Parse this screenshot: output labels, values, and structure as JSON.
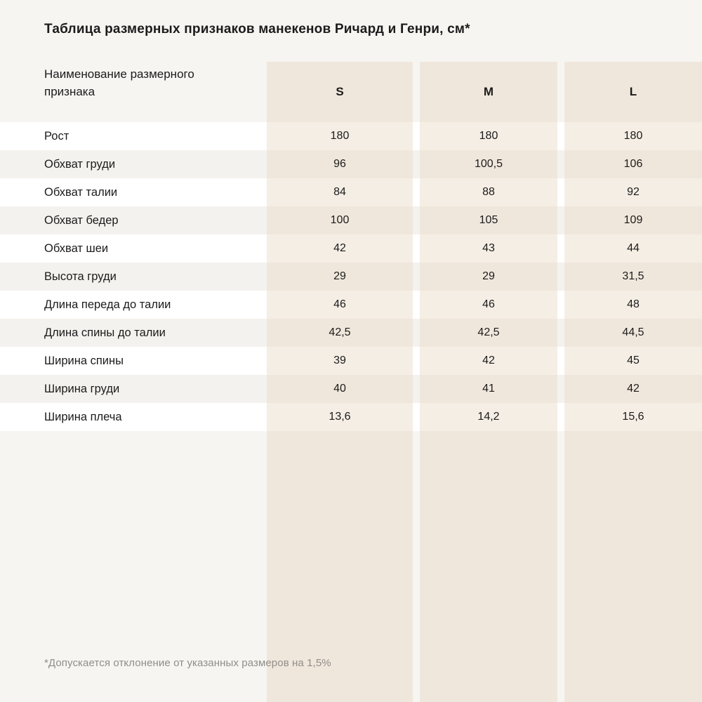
{
  "chart_data": {
    "type": "table",
    "title": "Таблица размерных признаков манекенов Ричард и Генри, см*",
    "header": {
      "label": "Наименование размерного признака",
      "sizes": [
        "S",
        "M",
        "L"
      ]
    },
    "rows": [
      {
        "label": "Рост",
        "values": [
          "180",
          "180",
          "180"
        ]
      },
      {
        "label": "Обхват груди",
        "values": [
          "96",
          "100,5",
          "106"
        ]
      },
      {
        "label": "Обхват талии",
        "values": [
          "84",
          "88",
          "92"
        ]
      },
      {
        "label": "Обхват бедер",
        "values": [
          "100",
          "105",
          "109"
        ]
      },
      {
        "label": "Обхват шеи",
        "values": [
          "42",
          "43",
          "44"
        ]
      },
      {
        "label": "Высота груди",
        "values": [
          "29",
          "29",
          "31,5"
        ]
      },
      {
        "label": "Длина переда до талии",
        "values": [
          "46",
          "46",
          "48"
        ]
      },
      {
        "label": "Длина спины до талии",
        "values": [
          "42,5",
          "42,5",
          "44,5"
        ]
      },
      {
        "label": "Ширина спины",
        "values": [
          "39",
          "42",
          "45"
        ]
      },
      {
        "label": "Ширина груди",
        "values": [
          "40",
          "41",
          "42"
        ]
      },
      {
        "label": "Ширина плеча",
        "values": [
          "13,6",
          "14,2",
          "15,6"
        ]
      }
    ],
    "footnote": "*Допускается отклонение от указанных размеров на 1,5%"
  },
  "colors": {
    "page_bg": "#f7f5f2",
    "band": "#f0e7dc",
    "band_light": "#f5eee5",
    "row_white": "#ffffff",
    "row_stripe": "#f4f2ee",
    "footnote": "#908d89",
    "text": "#1b1b1b"
  }
}
